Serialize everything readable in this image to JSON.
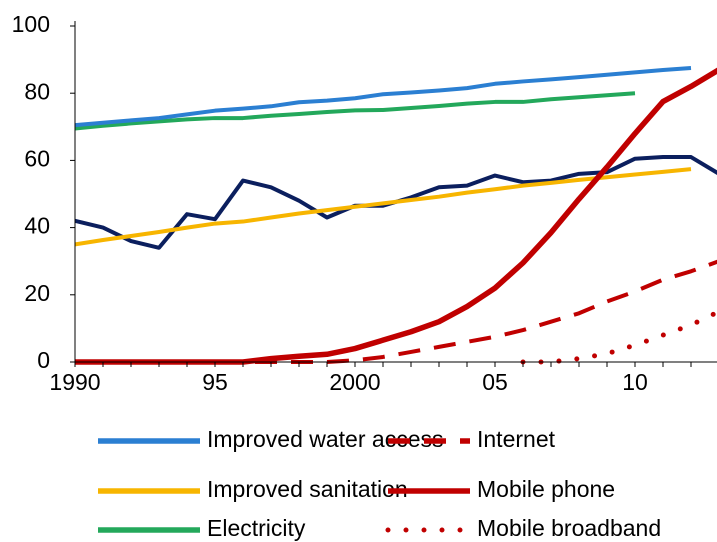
{
  "chart_data": {
    "type": "line",
    "x": [
      1990,
      1991,
      1992,
      1993,
      1994,
      1995,
      1996,
      1997,
      1998,
      1999,
      2000,
      2001,
      2002,
      2003,
      2004,
      2005,
      2006,
      2007,
      2008,
      2009,
      2010,
      2011,
      2012,
      2013
    ],
    "xlim": [
      1990,
      2013
    ],
    "xticks": [
      {
        "value": 1990,
        "label": "1990"
      },
      {
        "value": 1995,
        "label": "95"
      },
      {
        "value": 2000,
        "label": "2000"
      },
      {
        "value": 2005,
        "label": "05"
      },
      {
        "value": 2010,
        "label": "10"
      }
    ],
    "ylim": [
      0,
      100
    ],
    "yticks": [
      0,
      20,
      40,
      60,
      80,
      100
    ],
    "grid": false,
    "series": [
      {
        "name": "Improved water access",
        "color": "#2b7fd2",
        "style": "solid",
        "values": [
          70.5,
          71.2,
          71.9,
          72.6,
          73.7,
          74.8,
          75.4,
          76.1,
          77.3,
          77.8,
          78.5,
          79.7,
          80.2,
          80.8,
          81.5,
          82.8,
          83.5,
          84.1,
          84.8,
          85.5,
          86.2,
          86.9,
          87.5,
          null
        ]
      },
      {
        "name": "Improved sanitation",
        "color": "#f7b500",
        "style": "solid",
        "values": [
          35,
          36.3,
          37.5,
          38.7,
          40,
          41.2,
          41.8,
          43,
          44.2,
          45.2,
          46.2,
          47.2,
          48.2,
          49.2,
          50.4,
          51.4,
          52.5,
          53.3,
          54.2,
          55,
          55.8,
          56.6,
          57.4,
          null
        ]
      },
      {
        "name": "Electricity",
        "color": "#23a85b",
        "style": "solid",
        "values": [
          69.5,
          70.3,
          71,
          71.6,
          72.2,
          72.6,
          72.6,
          73.3,
          73.8,
          74.4,
          74.9,
          75,
          75.6,
          76.2,
          76.9,
          77.4,
          77.4,
          78.2,
          78.8,
          79.4,
          80,
          null,
          null,
          null
        ]
      },
      {
        "name": "Internet",
        "color": "#c00000",
        "style": "dashed",
        "values": [
          0,
          0,
          0,
          0,
          0,
          0,
          0,
          0,
          0,
          0,
          0.5,
          1.5,
          3,
          4.5,
          6,
          7.5,
          9.5,
          12,
          14.5,
          18,
          21,
          24.5,
          27,
          30
        ]
      },
      {
        "name": "Mobile phone",
        "color": "#c00000",
        "style": "solid",
        "values": [
          0,
          0,
          0,
          0,
          0,
          0,
          0,
          1,
          1.7,
          2.3,
          4,
          6.5,
          9,
          12,
          16.5,
          22,
          29.5,
          38.5,
          48.5,
          58,
          68,
          77.5,
          82,
          87
        ]
      },
      {
        "name": "Mobile broadband",
        "color": "#c00000",
        "style": "dotted",
        "values": [
          null,
          null,
          null,
          null,
          null,
          null,
          null,
          null,
          null,
          null,
          null,
          null,
          null,
          null,
          null,
          null,
          0,
          0,
          1,
          2.5,
          5,
          8,
          11,
          15
        ]
      },
      {
        "color": "#0b1f5e",
        "style": "solid",
        "values": [
          42,
          40,
          36,
          34,
          44,
          42.5,
          54,
          52,
          48,
          43,
          46.5,
          46.5,
          49,
          52,
          52.5,
          55.5,
          53.5,
          54,
          56,
          56.5,
          60.5,
          61,
          61,
          56
        ]
      }
    ]
  }
}
